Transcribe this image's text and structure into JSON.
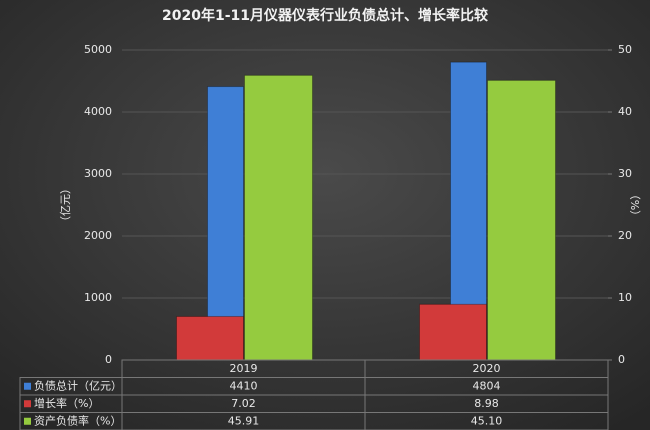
{
  "chart_data": {
    "type": "bar",
    "title": "2020年1-11月仪器仪表行业负债总计、增长率比较",
    "y_label": "（亿元）",
    "y2_label": "（%）",
    "categories": [
      "2019",
      "2020"
    ],
    "series": [
      {
        "name": "负债总计（亿元）",
        "color": "#3f7fd6",
        "values": [
          4410,
          4804
        ]
      },
      {
        "name": "增长率（%）",
        "color": "#d23a3a",
        "values": [
          7.02,
          8.98
        ],
        "axis": "y2"
      },
      {
        "name": "资产负债率（%）",
        "color": "#95cb3f",
        "values": [
          45.91,
          45.1
        ],
        "value_labels": [
          "45.91",
          "45.10"
        ],
        "axis": "y2"
      }
    ],
    "ylim": [
      0,
      5000
    ],
    "yticks": [
      0,
      1000,
      2000,
      3000,
      4000,
      5000
    ],
    "y2lim": [
      0,
      50
    ],
    "y2ticks": [
      0,
      10,
      20,
      30,
      40,
      50
    ],
    "grid": true
  }
}
